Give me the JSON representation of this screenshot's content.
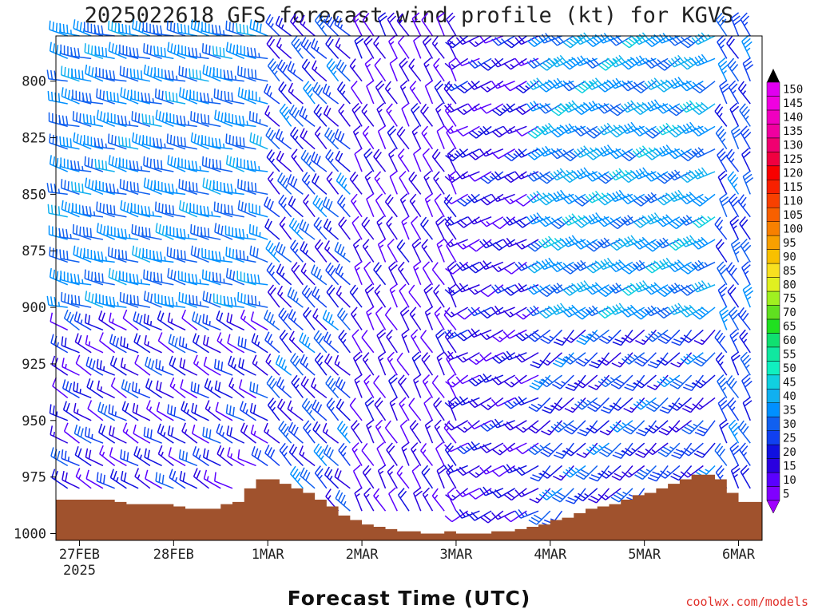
{
  "chart_data": {
    "type": "wind-barb-profile",
    "title": "2025022618 GFS forecast wind profile (kt) for KGVS",
    "xlabel": "Forecast Time (UTC)",
    "credit": "coolwx.com/models",
    "y_axis": {
      "ticks": [
        "800",
        "825",
        "850",
        "875",
        "900",
        "925",
        "950",
        "975",
        "1000"
      ],
      "ylim": [
        1003,
        780
      ],
      "scale": "pressure (mb), inverted"
    },
    "x_axis": {
      "ticks": [
        {
          "label": "27FEB",
          "sub": "2025",
          "hour": 6
        },
        {
          "label": "28FEB",
          "sub": "",
          "hour": 30
        },
        {
          "label": "1MAR",
          "sub": "",
          "hour": 54
        },
        {
          "label": "2MAR",
          "sub": "",
          "hour": 78
        },
        {
          "label": "3MAR",
          "sub": "",
          "hour": 102
        },
        {
          "label": "4MAR",
          "sub": "",
          "hour": 126
        },
        {
          "label": "5MAR",
          "sub": "",
          "hour": 150
        },
        {
          "label": "6MAR",
          "sub": "",
          "hour": 174
        }
      ],
      "xlim": [
        0,
        180
      ],
      "unit": "hours from 2025-02-26 18Z",
      "step_hours": 3
    },
    "pressure_levels": [
      780,
      790,
      800,
      810,
      820,
      830,
      840,
      850,
      860,
      870,
      880,
      890,
      900,
      910,
      920,
      930,
      940,
      950,
      960,
      970,
      980,
      990,
      1000
    ],
    "colorbar": {
      "labels": [
        "5",
        "10",
        "15",
        "20",
        "25",
        "30",
        "35",
        "40",
        "45",
        "50",
        "55",
        "60",
        "65",
        "70",
        "75",
        "80",
        "85",
        "90",
        "95",
        "100",
        "105",
        "110",
        "115",
        "120",
        "125",
        "130",
        "135",
        "140",
        "145",
        "150"
      ],
      "colors": [
        "#8000ff",
        "#5a00ff",
        "#2a00e0",
        "#1010e0",
        "#1040f0",
        "#1060f0",
        "#0090ff",
        "#10b0f0",
        "#10d0e0",
        "#10f0c0",
        "#10e8a0",
        "#10e070",
        "#20e020",
        "#60e020",
        "#a0f020",
        "#e0f020",
        "#f8e020",
        "#f8c000",
        "#f8a000",
        "#f88000",
        "#f86000",
        "#f84000",
        "#f82000",
        "#f80000",
        "#f00040",
        "#f00070",
        "#f000a0",
        "#f000c0",
        "#f000e0",
        "#e000f0"
      ]
    },
    "winds": [
      {
        "hour_range": [
          0,
          57
        ],
        "level_range": [
          780,
          900
        ],
        "dir": 285,
        "kt": [
          30,
          40
        ]
      },
      {
        "hour_range": [
          0,
          57
        ],
        "level_range": [
          900,
          1000
        ],
        "dir": 300,
        "kt": [
          10,
          30
        ]
      },
      {
        "hour_range": [
          57,
          78
        ],
        "level_range": [
          780,
          1000
        ],
        "dir": 315,
        "kt": [
          15,
          35
        ]
      },
      {
        "hour_range": [
          78,
          105
        ],
        "level_range": [
          780,
          1000
        ],
        "dir": 330,
        "kt": [
          10,
          20
        ]
      },
      {
        "hour_range": [
          105,
          126
        ],
        "level_range": [
          780,
          1000
        ],
        "dir": 240,
        "kt": [
          10,
          25
        ]
      },
      {
        "hour_range": [
          126,
          170
        ],
        "level_range": [
          780,
          900
        ],
        "dir": 240,
        "kt": [
          30,
          45
        ]
      },
      {
        "hour_range": [
          126,
          170
        ],
        "level_range": [
          900,
          1000
        ],
        "dir": 225,
        "kt": [
          15,
          35
        ]
      },
      {
        "hour_range": [
          170,
          180
        ],
        "level_range": [
          780,
          1000
        ],
        "dir": 330,
        "kt": [
          20,
          35
        ]
      }
    ],
    "surface_pressure": [
      [
        0,
        985
      ],
      [
        3,
        985
      ],
      [
        6,
        985
      ],
      [
        9,
        985
      ],
      [
        12,
        985
      ],
      [
        15,
        986
      ],
      [
        18,
        987
      ],
      [
        21,
        987
      ],
      [
        24,
        987
      ],
      [
        27,
        987
      ],
      [
        30,
        988
      ],
      [
        33,
        989
      ],
      [
        36,
        989
      ],
      [
        39,
        989
      ],
      [
        42,
        987
      ],
      [
        45,
        986
      ],
      [
        48,
        980
      ],
      [
        51,
        976
      ],
      [
        54,
        976
      ],
      [
        57,
        978
      ],
      [
        60,
        980
      ],
      [
        63,
        982
      ],
      [
        66,
        985
      ],
      [
        69,
        988
      ],
      [
        72,
        992
      ],
      [
        75,
        994
      ],
      [
        78,
        996
      ],
      [
        81,
        997
      ],
      [
        84,
        998
      ],
      [
        87,
        999
      ],
      [
        90,
        999
      ],
      [
        93,
        1000
      ],
      [
        96,
        1000
      ],
      [
        99,
        999
      ],
      [
        102,
        1000
      ],
      [
        105,
        1000
      ],
      [
        108,
        1000
      ],
      [
        111,
        999
      ],
      [
        114,
        999
      ],
      [
        117,
        998
      ],
      [
        120,
        997
      ],
      [
        123,
        996
      ],
      [
        126,
        994
      ],
      [
        129,
        993
      ],
      [
        132,
        991
      ],
      [
        135,
        989
      ],
      [
        138,
        988
      ],
      [
        141,
        987
      ],
      [
        144,
        985
      ],
      [
        147,
        983
      ],
      [
        150,
        982
      ],
      [
        153,
        980
      ],
      [
        156,
        978
      ],
      [
        159,
        976
      ],
      [
        162,
        974
      ],
      [
        165,
        974
      ],
      [
        168,
        976
      ],
      [
        171,
        982
      ],
      [
        174,
        986
      ],
      [
        177,
        986
      ],
      [
        180,
        986
      ]
    ]
  }
}
